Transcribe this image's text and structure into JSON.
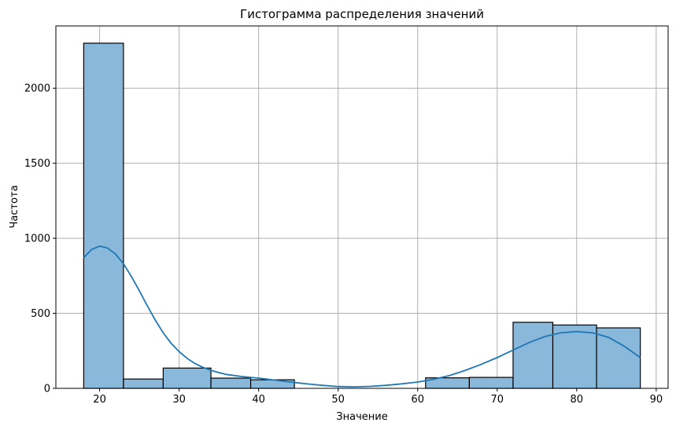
{
  "chart_data": {
    "type": "bar",
    "title": "Гистограмма распределения значений",
    "xlabel": "Значение",
    "ylabel": "Частота",
    "xlim": [
      14.5,
      91.5
    ],
    "ylim": [
      0,
      2415
    ],
    "xticks": [
      20,
      30,
      40,
      50,
      60,
      70,
      80,
      90
    ],
    "yticks": [
      0,
      500,
      1000,
      1500,
      2000
    ],
    "grid": true,
    "bins": [
      {
        "x0": 18.0,
        "x1": 23.0,
        "value": 2300
      },
      {
        "x0": 23.0,
        "x1": 28.0,
        "value": 62
      },
      {
        "x0": 28.0,
        "x1": 34.0,
        "value": 135
      },
      {
        "x0": 34.0,
        "x1": 39.0,
        "value": 68
      },
      {
        "x0": 39.0,
        "x1": 44.5,
        "value": 57
      },
      {
        "x0": 44.5,
        "x1": 50.0,
        "value": 0
      },
      {
        "x0": 50.0,
        "x1": 55.5,
        "value": 0
      },
      {
        "x0": 55.5,
        "x1": 61.0,
        "value": 0
      },
      {
        "x0": 61.0,
        "x1": 66.5,
        "value": 70
      },
      {
        "x0": 66.5,
        "x1": 72.0,
        "value": 73
      },
      {
        "x0": 72.0,
        "x1": 77.0,
        "value": 440
      },
      {
        "x0": 77.0,
        "x1": 82.5,
        "value": 422
      },
      {
        "x0": 82.5,
        "x1": 88.0,
        "value": 403
      }
    ],
    "kde": {
      "x": [
        18,
        19,
        20,
        21,
        22,
        23,
        24,
        25,
        26,
        27,
        28,
        29,
        30,
        31,
        32,
        33,
        34,
        35,
        36,
        38,
        40,
        42,
        44,
        46,
        48,
        50,
        52,
        54,
        56,
        58,
        60,
        62,
        64,
        66,
        68,
        70,
        72,
        74,
        76,
        78,
        80,
        82,
        84,
        86,
        88
      ],
      "y": [
        870,
        925,
        948,
        935,
        895,
        830,
        745,
        650,
        550,
        455,
        370,
        300,
        245,
        200,
        165,
        140,
        120,
        105,
        92,
        78,
        68,
        55,
        42,
        30,
        20,
        12,
        10,
        13,
        20,
        30,
        42,
        60,
        85,
        120,
        160,
        205,
        255,
        305,
        345,
        370,
        378,
        370,
        340,
        280,
        205
      ]
    },
    "color": "#89b8da",
    "line_color": "#1f77b4"
  }
}
